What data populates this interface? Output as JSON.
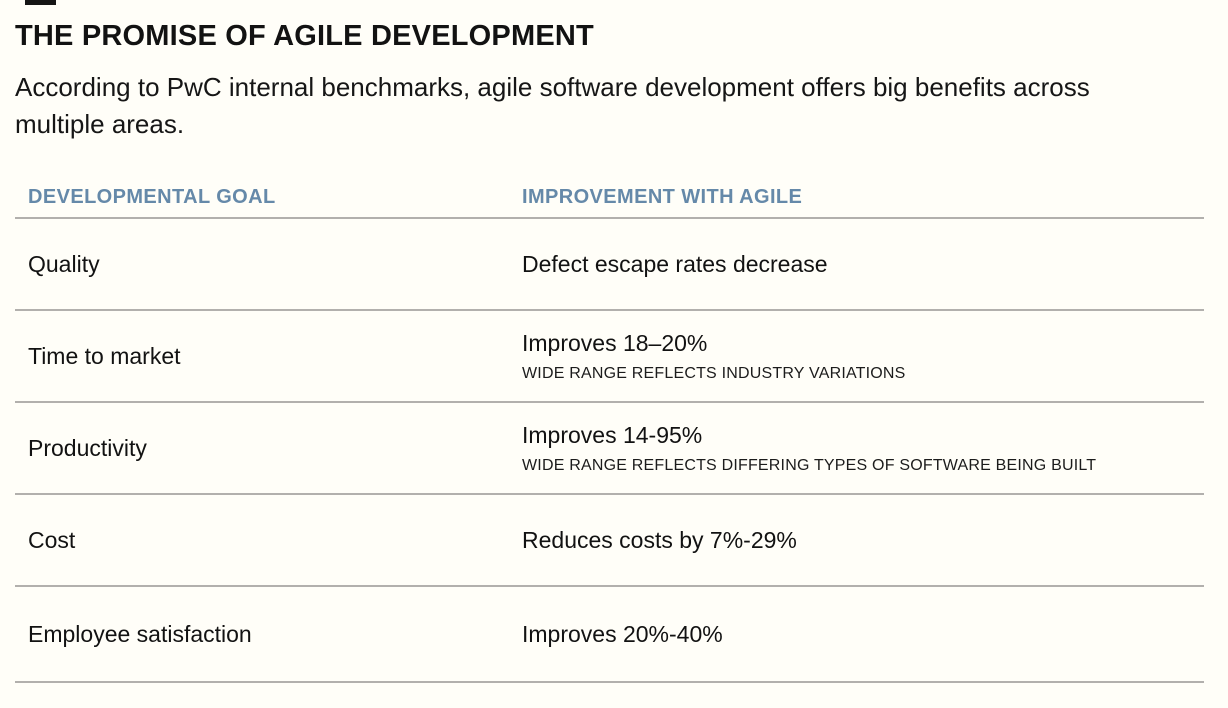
{
  "figure": {
    "title": "THE PROMISE OF AGILE DEVELOPMENT",
    "subtitle": "According to PwC internal benchmarks, agile software development offers big benefits across multiple areas."
  },
  "colors": {
    "background": "#fffef8",
    "title_text": "#121212",
    "column_header_blue": "#6589a9",
    "body_text": "#161616",
    "divider_gray": "#b2b0ad"
  },
  "table": {
    "columns": [
      {
        "label": "DEVELOPMENTAL GOAL"
      },
      {
        "label": "IMPROVEMENT WITH AGILE"
      }
    ],
    "rows": [
      {
        "goal": "Quality",
        "improvement": "Defect escape rates decrease",
        "note": ""
      },
      {
        "goal": "Time to market",
        "improvement": "Improves 18–20%",
        "note": "WIDE RANGE REFLECTS INDUSTRY VARIATIONS"
      },
      {
        "goal": "Productivity",
        "improvement": "Improves 14-95%",
        "note": "WIDE RANGE REFLECTS DIFFERING TYPES OF SOFTWARE BEING BUILT"
      },
      {
        "goal": "Cost",
        "improvement": "Reduces costs by 7%-29%",
        "note": ""
      },
      {
        "goal": "Employee satisfaction",
        "improvement": "Improves 20%-40%",
        "note": ""
      }
    ]
  },
  "chart_data": {
    "type": "table",
    "title": "THE PROMISE OF AGILE DEVELOPMENT",
    "subtitle": "According to PwC internal benchmarks, agile software development offers big benefits across multiple areas.",
    "columns": [
      "DEVELOPMENTAL GOAL",
      "IMPROVEMENT WITH AGILE"
    ],
    "rows": [
      [
        "Quality",
        "Defect escape rates decrease",
        ""
      ],
      [
        "Time to market",
        "Improves 18–20%",
        "WIDE RANGE REFLECTS INDUSTRY VARIATIONS"
      ],
      [
        "Productivity",
        "Improves 14-95%",
        "WIDE RANGE REFLECTS DIFFERING TYPES OF SOFTWARE BEING BUILT"
      ],
      [
        "Cost",
        "Reduces costs by 7%-29%",
        ""
      ],
      [
        "Employee satisfaction",
        "Improves 20%-40%",
        ""
      ]
    ],
    "layout": {
      "grid": "horizontal row dividers only",
      "header_color": "#6589a9"
    }
  }
}
